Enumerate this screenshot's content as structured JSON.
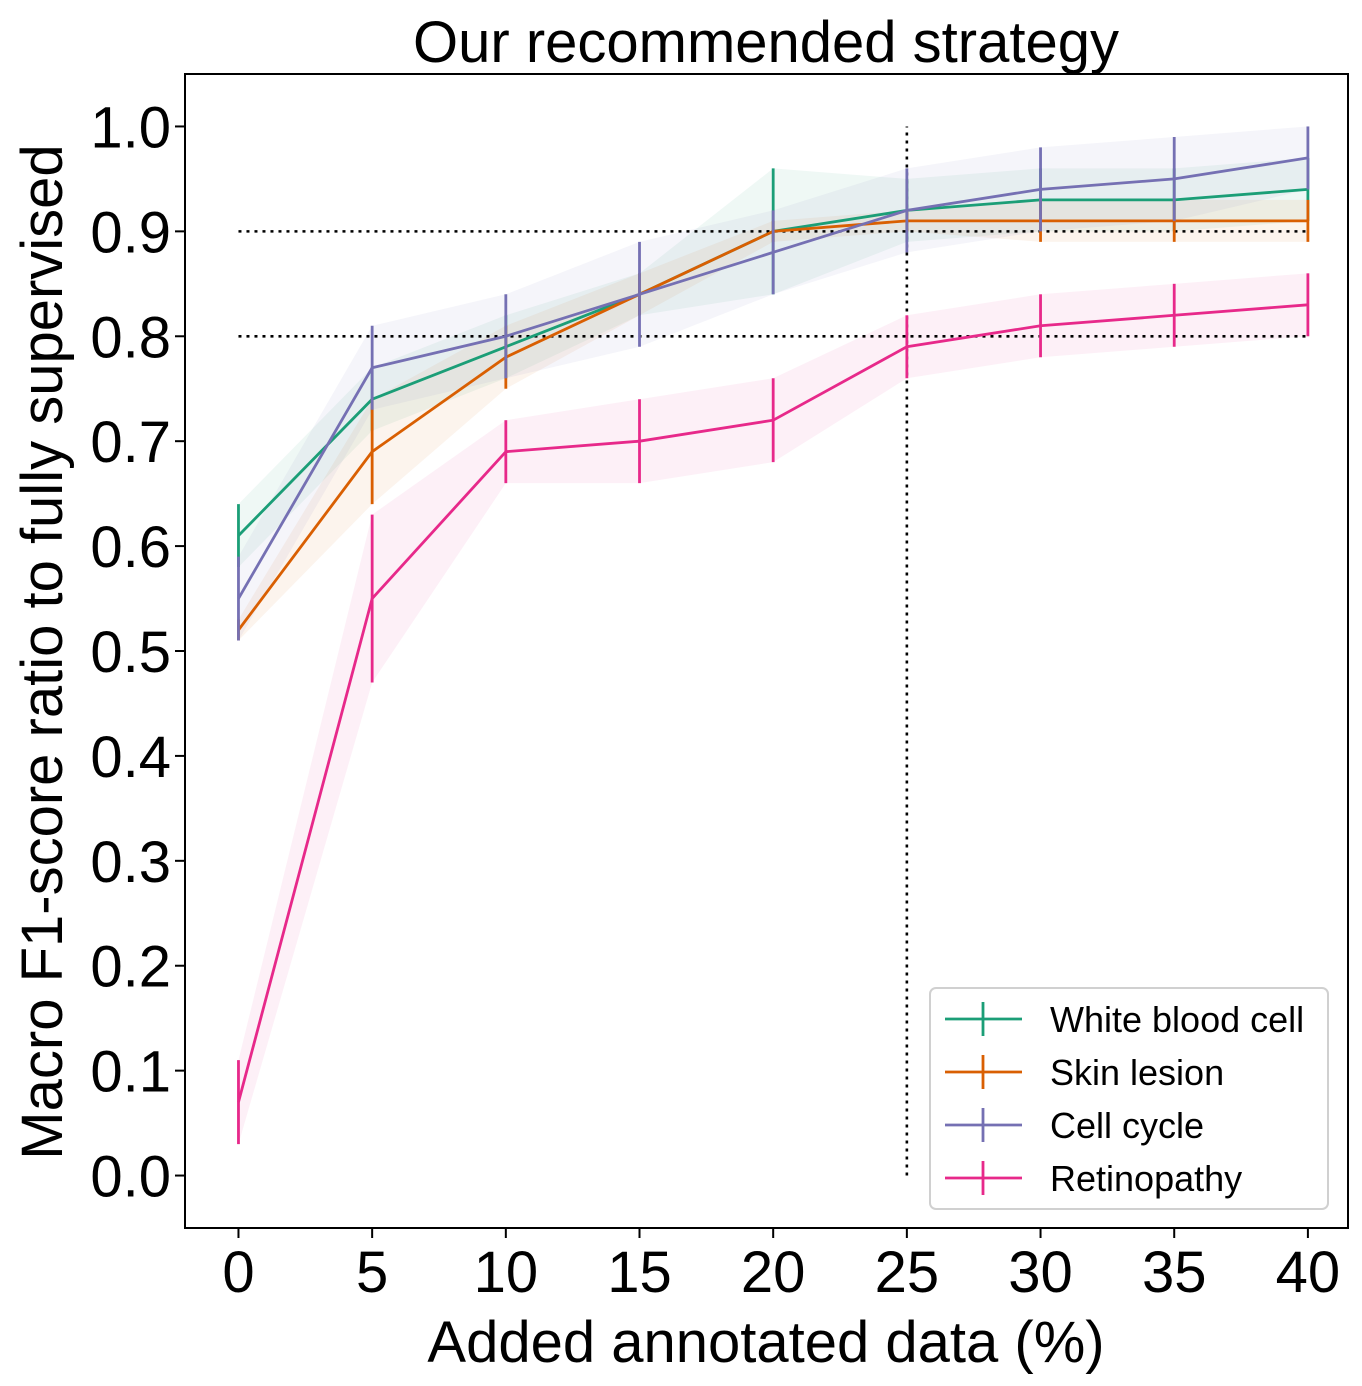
{
  "chart_data": {
    "type": "line",
    "title": "Our recommended strategy",
    "xlabel": "Added annotated data (%)",
    "ylabel": "Macro F1-score ratio to fully supervised",
    "x": [
      0,
      5,
      10,
      15,
      20,
      25,
      30,
      35,
      40
    ],
    "xlim": [
      -2,
      41.5
    ],
    "ylim": [
      -0.05,
      1.05
    ],
    "xticks": [
      0,
      5,
      10,
      15,
      20,
      25,
      30,
      35,
      40
    ],
    "yticks": [
      0.0,
      0.1,
      0.2,
      0.3,
      0.4,
      0.5,
      0.6,
      0.7,
      0.8,
      0.9,
      1.0
    ],
    "xtick_labels": [
      "0",
      "5",
      "10",
      "15",
      "20",
      "25",
      "30",
      "35",
      "40"
    ],
    "ytick_labels": [
      "0.0",
      "0.1",
      "0.2",
      "0.3",
      "0.4",
      "0.5",
      "0.6",
      "0.7",
      "0.8",
      "0.9",
      "1.0"
    ],
    "grid": false,
    "legend_position": "bottom-right",
    "series": [
      {
        "name": "White blood cell",
        "color": "#1b9e77",
        "values": [
          0.61,
          0.74,
          0.79,
          0.84,
          0.9,
          0.92,
          0.93,
          0.93,
          0.94
        ],
        "errors": [
          0.03,
          0.03,
          0.03,
          0.02,
          0.06,
          0.03,
          0.03,
          0.03,
          0.03
        ]
      },
      {
        "name": "Skin lesion",
        "color": "#d95f02",
        "values": [
          0.52,
          0.69,
          0.78,
          0.84,
          0.9,
          0.91,
          0.91,
          0.91,
          0.91
        ],
        "errors": [
          0.01,
          0.05,
          0.03,
          0.02,
          0.01,
          0.01,
          0.02,
          0.02,
          0.02
        ]
      },
      {
        "name": "Cell cycle",
        "color": "#7570b3",
        "values": [
          0.55,
          0.77,
          0.8,
          0.84,
          0.88,
          0.92,
          0.94,
          0.95,
          0.97
        ],
        "errors": [
          0.04,
          0.04,
          0.04,
          0.05,
          0.04,
          0.04,
          0.04,
          0.04,
          0.03
        ]
      },
      {
        "name": "Retinopathy",
        "color": "#e7298a",
        "values": [
          0.07,
          0.55,
          0.69,
          0.7,
          0.72,
          0.79,
          0.81,
          0.82,
          0.83
        ],
        "errors": [
          0.04,
          0.08,
          0.03,
          0.04,
          0.04,
          0.03,
          0.03,
          0.03,
          0.03
        ]
      }
    ],
    "reference_lines": {
      "horizontal": [
        {
          "y": 0.9,
          "x_from": 0,
          "x_to": 40
        },
        {
          "y": 0.8,
          "x_from": 0,
          "x_to": 40
        }
      ],
      "vertical": [
        {
          "x": 25,
          "y_from": 0.0,
          "y_to": 1.0
        }
      ]
    }
  }
}
